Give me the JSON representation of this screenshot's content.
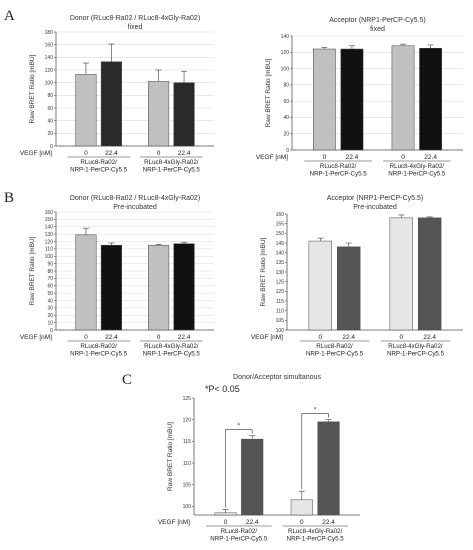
{
  "panel_labels": [
    "A",
    "B",
    "C"
  ],
  "vegf_label": "VEGF [nM]",
  "significance_note": "*P< 0.05",
  "colors": {
    "light_gray": "#c0c0c0",
    "very_light_gray": "#e6e6e6",
    "dark_gray": "#555555",
    "black": "#111111"
  },
  "chart_data": [
    {
      "type": "bar",
      "title": "Donor (RLuc8-Ra02 / RLuc8-4xGly-Ra02)",
      "subtitle": "fixed",
      "ylabel": "Raw BRET Ratio [mBU]",
      "ylim": [
        0,
        180
      ],
      "yticks": [
        0,
        20,
        40,
        60,
        80,
        100,
        120,
        140,
        160,
        180
      ],
      "grid": true,
      "groups": [
        {
          "label": "RLuc8-Ra02/\nNRP-1-PerCP-Cy5.5",
          "x": [
            "0",
            "22.4"
          ],
          "values": [
            113,
            133
          ],
          "errors": [
            18,
            28
          ],
          "colors": [
            "#c0c0c0",
            "#2a2a2a"
          ]
        },
        {
          "label": "RLuc8-4xGly-Ra02/\nNRP-1-PerCP-Cy5.5",
          "x": [
            "0",
            "22.4"
          ],
          "values": [
            102,
            100
          ],
          "errors": [
            18,
            18
          ],
          "colors": [
            "#c0c0c0",
            "#2a2a2a"
          ]
        }
      ]
    },
    {
      "type": "bar",
      "title": "Acceptor (NRP1-PerCP-Cy5.5)",
      "subtitle": "fixed",
      "ylabel": "Raw BRET Ratio [mBU]",
      "ylim": [
        0,
        140
      ],
      "yticks": [
        0,
        20,
        40,
        60,
        80,
        100,
        120,
        140
      ],
      "grid": true,
      "groups": [
        {
          "label": "RLuc8-Ra02/\nNRP-1-PerCP-Cy5.5",
          "x": [
            "0",
            "22.4"
          ],
          "values": [
            124,
            124
          ],
          "errors": [
            2,
            4
          ],
          "colors": [
            "#c0c0c0",
            "#111111"
          ]
        },
        {
          "label": "RLuc8-4xGly-Ra02/\nNRP-1-PerCP-Cy5.5",
          "x": [
            "0",
            "22.4"
          ],
          "values": [
            128,
            125
          ],
          "errors": [
            2,
            4
          ],
          "colors": [
            "#c0c0c0",
            "#111111"
          ]
        }
      ]
    },
    {
      "type": "bar",
      "title": "Donor (RLuc8-Ra02 / RLuc8-4xGly-Ra02)",
      "subtitle": "Pre-incubated",
      "ylabel": "Raw BRET Ratio [mBU]",
      "ylim": [
        0,
        160
      ],
      "yticks": [
        0,
        10,
        20,
        30,
        40,
        50,
        60,
        70,
        80,
        90,
        100,
        110,
        120,
        130,
        140,
        150,
        160
      ],
      "grid": true,
      "groups": [
        {
          "label": "RLuc8-Ra02/\nNRP-1-PerCP-Cy5.5",
          "x": [
            "0",
            "22.4"
          ],
          "values": [
            129,
            115
          ],
          "errors": [
            9,
            3
          ],
          "colors": [
            "#c0c0c0",
            "#111111"
          ]
        },
        {
          "label": "RLuc8-4xGly-Ra02/\nNRP-1-PerCP-Cy5.5",
          "x": [
            "0",
            "22.4"
          ],
          "values": [
            115,
            117
          ],
          "errors": [
            1,
            2
          ],
          "colors": [
            "#c0c0c0",
            "#111111"
          ]
        }
      ]
    },
    {
      "type": "bar",
      "title": "Acceptor (NRP1-PerCP-Cy5.5)",
      "subtitle": "Pre-incubated",
      "ylabel": "Raw BRET Ratio [mBU]",
      "ylim": [
        100,
        160
      ],
      "yticks": [
        100,
        105,
        110,
        115,
        120,
        125,
        130,
        135,
        140,
        145,
        150,
        155,
        160
      ],
      "grid": false,
      "groups": [
        {
          "label": "RLuc8-Ra02/\nNRP-1-PerCP-Cy5.5",
          "x": [
            "0",
            "22.4"
          ],
          "values": [
            146,
            143
          ],
          "errors": [
            1.5,
            2
          ],
          "colors": [
            "#e6e6e6",
            "#555555"
          ]
        },
        {
          "label": "RLuc8-4xGly-Ra02/\nNRP-1-PerCP-Cy5.5",
          "x": [
            "0",
            "22.4"
          ],
          "values": [
            158,
            158
          ],
          "errors": [
            1.5,
            0.5
          ],
          "colors": [
            "#e6e6e6",
            "#555555"
          ]
        }
      ]
    },
    {
      "type": "bar",
      "title": "Donor/Acceptor simultanous",
      "subtitle": "",
      "ylabel": "Raw BRET Ratio [mBU]",
      "ylim": [
        98,
        125
      ],
      "yticks": [
        100,
        105,
        110,
        115,
        120,
        125
      ],
      "grid": false,
      "groups": [
        {
          "label": "RLuc8-Ra02/\nNRP-1-PerCP-Cy5.5",
          "x": [
            "0",
            "22.4"
          ],
          "values": [
            98.5,
            115.5
          ],
          "errors": [
            0.8,
            0.8
          ],
          "colors": [
            "#e6e6e6",
            "#555555"
          ]
        },
        {
          "label": "RLuc8-4xGly-Ra02/\nNRP-1-PerCP-Cy5.5",
          "x": [
            "0",
            "22.4"
          ],
          "values": [
            101.5,
            119.5
          ],
          "errors": [
            2,
            0.5
          ],
          "colors": [
            "#e6e6e6",
            "#555555"
          ]
        }
      ],
      "significance": [
        "*",
        "*"
      ]
    }
  ]
}
